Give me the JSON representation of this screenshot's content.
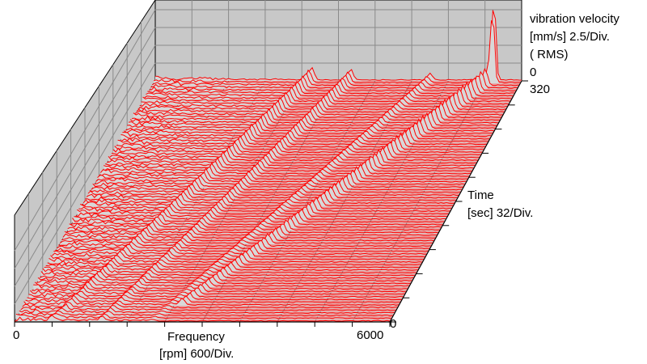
{
  "chart_data": {
    "type": "waterfall-3d",
    "z_axis": {
      "label_line1": "vibration velocity",
      "label_line2": "[mm/s] 2.5/Div.",
      "label_line3": "( RMS)",
      "zero_label": "0"
    },
    "y_axis": {
      "label_line1": "Time",
      "label_line2": "[sec] 32/Div.",
      "max_label": "320",
      "min_label": "0",
      "range": [
        0,
        320
      ]
    },
    "x_axis": {
      "label_line1": "Frequency",
      "label_line2": "[rpm] 600/Div.",
      "min_label": "0",
      "max_label": "6000",
      "range": [
        0,
        6000
      ]
    },
    "grid": true,
    "colors": {
      "trace": "#ff0000",
      "floor": "#e89a9a",
      "wall": "#c8c8c8"
    },
    "orders": [
      {
        "time": [
          0,
          320
        ],
        "freq": [
          620,
          2560
        ]
      },
      {
        "time": [
          0,
          320
        ],
        "freq": [
          1400,
          3200
        ]
      },
      {
        "time": [
          20,
          320
        ],
        "freq": [
          2520,
          5520
        ]
      },
      {
        "time": [
          0,
          320
        ],
        "freq": [
          2200,
          4500
        ]
      }
    ],
    "peak": {
      "time": 320,
      "freq": 5550,
      "amplitude": 10
    }
  }
}
